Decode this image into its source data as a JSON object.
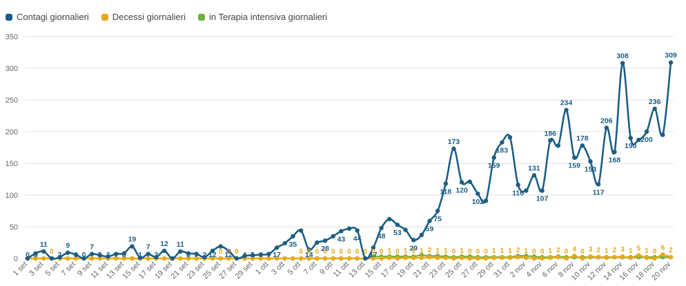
{
  "legend": {
    "cases": "Contagi giornalieri",
    "deaths": "Decessi giornalieri",
    "icu": "in Terapia intensiva giornalieri"
  },
  "colors": {
    "cases": "#1a5e86",
    "deaths": "#e9a812",
    "icu": "#6fb13a",
    "grid": "#e3e3e3",
    "axis": "#666666"
  },
  "chart_data": {
    "type": "line",
    "title": "",
    "xlabel": "",
    "ylabel": "",
    "ylim": [
      0,
      350
    ],
    "yticks": [
      0,
      50,
      100,
      150,
      200,
      250,
      300,
      350
    ],
    "grid": true,
    "legend_position": "top-left",
    "x": [
      "1 set",
      "2 set",
      "3 set",
      "4 set",
      "5 set",
      "6 set",
      "7 set",
      "8 set",
      "9 set",
      "10 set",
      "11 set",
      "12 set",
      "13 set",
      "14 set",
      "15 set",
      "16 set",
      "17 set",
      "18 set",
      "19 set",
      "20 set",
      "21 set",
      "22 set",
      "23 set",
      "24 set",
      "25 set",
      "26 set",
      "27 set",
      "28 set",
      "29 set",
      "30 set",
      "1 ott",
      "2 ott",
      "3 ott",
      "4 ott",
      "5 ott",
      "6 ott",
      "7 ott",
      "8 ott",
      "9 ott",
      "10 ott",
      "11 ott",
      "12 ott",
      "13 ott",
      "14 ott",
      "15 ott",
      "16 ott",
      "17 ott",
      "18 ott",
      "19 ott",
      "20 ott",
      "21 ott",
      "22 ott",
      "23 ott",
      "24 ott",
      "25 ott",
      "26 ott",
      "27 ott",
      "28 ott",
      "29 ott",
      "30 ott",
      "31 ott",
      "1 nov",
      "2 nov",
      "3 nov",
      "4 nov",
      "5 nov",
      "6 nov",
      "7 nov",
      "8 nov",
      "9 nov",
      "10 nov",
      "11 nov",
      "12 nov",
      "13 nov",
      "14 nov",
      "15 nov",
      "16 nov",
      "17 nov",
      "18 nov",
      "19 nov",
      "20 nov"
    ],
    "xtick_labels": [
      "1 set",
      "3 set",
      "5 set",
      "7 set",
      "9 set",
      "11 set",
      "13 set",
      "15 set",
      "17 set",
      "19 set",
      "21 set",
      "23 set",
      "25 set",
      "27 set",
      "29 set",
      "1 ott",
      "3 ott",
      "5 ott",
      "7 ott",
      "9 ott",
      "11 ott",
      "13 ott",
      "15 ott",
      "17 ott",
      "19 ott",
      "21 ott",
      "23 ott",
      "25 ott",
      "27 ott",
      "29 ott",
      "31 ott",
      "2 nov",
      "4 nov",
      "6 nov",
      "8 nov",
      "10 nov",
      "12 nov",
      "14 nov",
      "16 nov",
      "18 nov",
      "20 nov"
    ],
    "series": [
      {
        "name": "Contagi giornalieri",
        "key": "cases",
        "values": [
          0,
          8,
          11,
          0,
          2,
          9,
          6,
          0,
          7,
          5,
          3,
          7,
          8,
          19,
          1,
          7,
          2,
          12,
          0,
          11,
          8,
          7,
          2,
          12,
          19,
          12,
          0,
          4,
          5,
          6,
          7,
          17,
          24,
          35,
          44,
          14,
          25,
          28,
          35,
          43,
          47,
          44,
          0,
          17,
          48,
          62,
          53,
          45,
          29,
          37,
          59,
          75,
          118,
          173,
          120,
          121,
          102,
          91,
          159,
          183,
          191,
          116,
          107,
          131,
          107,
          186,
          178,
          234,
          159,
          178,
          153,
          117,
          206,
          168,
          308,
          190,
          187,
          200,
          236,
          195,
          309
        ],
        "labels": [
          0,
          8,
          11,
          null,
          2,
          9,
          6,
          0,
          7,
          5,
          3,
          7,
          8,
          19,
          1,
          7,
          2,
          12,
          null,
          11,
          8,
          7,
          2,
          12,
          null,
          12,
          null,
          4,
          5,
          6,
          7,
          17,
          null,
          35,
          null,
          14,
          null,
          28,
          null,
          43,
          null,
          44,
          null,
          17,
          48,
          null,
          53,
          null,
          29,
          null,
          59,
          75,
          118,
          173,
          120,
          null,
          102,
          null,
          159,
          183,
          null,
          116,
          null,
          131,
          107,
          186,
          null,
          234,
          159,
          178,
          153,
          117,
          206,
          168,
          308,
          190,
          null,
          200,
          236,
          null,
          309
        ]
      },
      {
        "name": "Decessi giornalieri",
        "key": "deaths",
        "values": [
          0,
          0,
          0,
          0,
          0,
          0,
          0,
          0,
          0,
          0,
          0,
          0,
          0,
          0,
          0,
          0,
          0,
          0,
          0,
          0,
          0,
          0,
          0,
          0,
          0,
          0,
          0,
          0,
          0,
          0,
          0,
          0,
          0,
          0,
          0,
          0,
          0,
          0,
          0,
          0,
          0,
          0,
          0,
          0,
          0,
          1,
          0,
          1,
          1,
          1,
          2,
          1,
          1,
          0,
          1,
          0,
          0,
          0,
          1,
          1,
          1,
          2,
          1,
          0,
          0,
          1,
          2,
          0,
          4,
          0,
          3,
          2,
          1,
          2,
          3,
          1,
          5,
          1,
          0,
          6,
          2
        ],
        "labels": [
          null,
          null,
          null,
          0,
          null,
          null,
          null,
          null,
          null,
          null,
          null,
          null,
          null,
          null,
          null,
          null,
          null,
          null,
          null,
          null,
          null,
          null,
          null,
          null,
          0,
          0,
          0,
          null,
          null,
          null,
          null,
          null,
          null,
          null,
          0,
          0,
          0,
          0,
          0,
          0,
          0,
          0,
          0,
          0,
          0,
          1,
          0,
          1,
          1,
          1,
          2,
          1,
          1,
          0,
          1,
          0,
          0,
          0,
          1,
          1,
          1,
          2,
          1,
          0,
          0,
          1,
          2,
          0,
          4,
          0,
          3,
          2,
          1,
          2,
          3,
          1,
          5,
          1,
          0,
          6,
          2
        ]
      },
      {
        "name": "in Terapia intensiva giornalieri",
        "key": "icu",
        "values": [
          0,
          0,
          0,
          0,
          0,
          0,
          0,
          0,
          0,
          0,
          0,
          0,
          0,
          0,
          0,
          0,
          0,
          0,
          0,
          0,
          0,
          0,
          0,
          0,
          0,
          0,
          0,
          0,
          0,
          0,
          0,
          0,
          0,
          0,
          0,
          0,
          0,
          0,
          0,
          0,
          0,
          0,
          0,
          3,
          3,
          3,
          3,
          3,
          3,
          5,
          4,
          4,
          3,
          2,
          3,
          3,
          2,
          2,
          2,
          2,
          2,
          4,
          4,
          3,
          2,
          2,
          3,
          2,
          2,
          2,
          2,
          2,
          2,
          2,
          2,
          2,
          2,
          2,
          2,
          2,
          2
        ],
        "labels": []
      }
    ]
  }
}
